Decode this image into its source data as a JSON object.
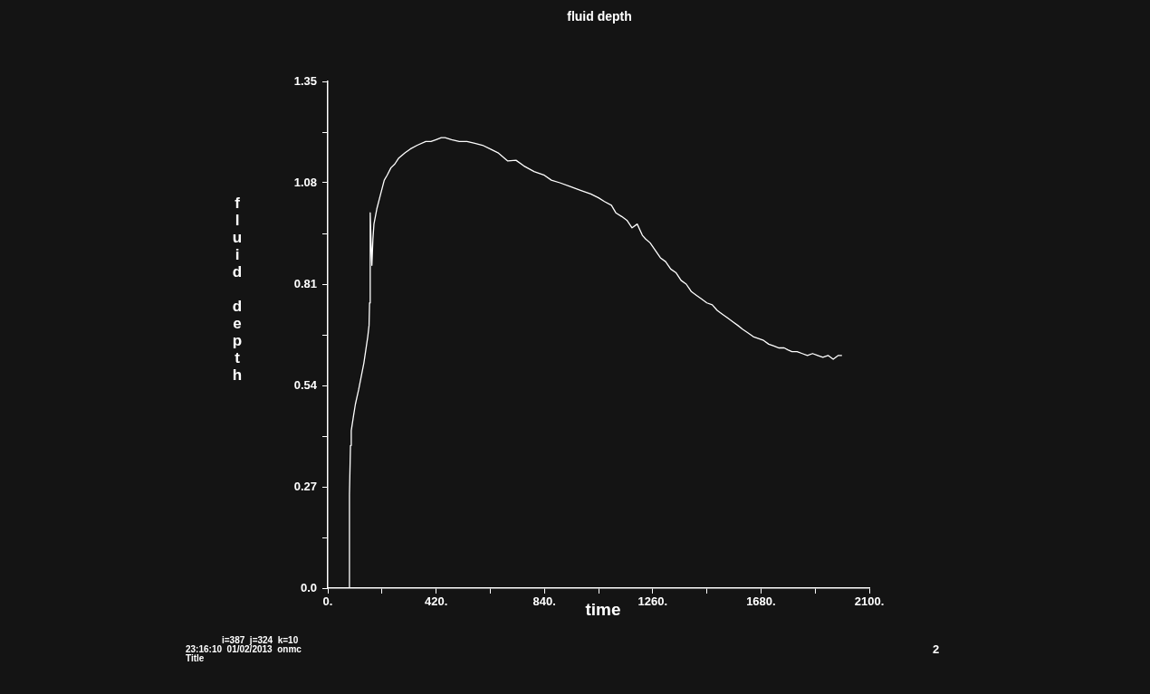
{
  "chart_data": {
    "type": "line",
    "title": "fluid depth",
    "xlabel": "time",
    "ylabel": "fluid depth",
    "x": [
      81,
      84,
      88,
      91,
      100,
      107,
      120,
      140,
      155,
      160,
      162,
      164,
      165,
      168,
      171,
      175,
      179,
      190,
      205,
      219,
      230,
      245,
      260,
      274,
      300,
      320,
      347,
      380,
      400,
      420,
      440,
      455,
      480,
      510,
      540,
      570,
      600,
      630,
      660,
      698,
      730,
      760,
      800,
      840,
      867,
      900,
      940,
      980,
      1020,
      1050,
      1073,
      1100,
      1117,
      1140,
      1160,
      1180,
      1200,
      1220,
      1233,
      1250,
      1270,
      1290,
      1310,
      1330,
      1351,
      1370,
      1390,
      1410,
      1430,
      1450,
      1470,
      1491,
      1510,
      1530,
      1550,
      1570,
      1590,
      1608,
      1630,
      1650,
      1670,
      1690,
      1710,
      1730,
      1750,
      1770,
      1784,
      1800,
      1820,
      1840,
      1860,
      1880,
      1900,
      1920,
      1940,
      1960,
      1980,
      1994
    ],
    "series": [
      {
        "color": "#ffffff",
        "values": [
          0.0,
          0.25,
          0.38,
          0.42,
          0.46,
          0.49,
          0.53,
          0.6,
          0.67,
          0.7,
          0.76,
          0.9,
          1.0,
          0.92,
          0.86,
          0.93,
          0.97,
          1.01,
          1.05,
          1.087,
          1.1,
          1.12,
          1.13,
          1.145,
          1.16,
          1.17,
          1.18,
          1.19,
          1.19,
          1.195,
          1.2,
          1.2,
          1.195,
          1.19,
          1.19,
          1.185,
          1.18,
          1.17,
          1.16,
          1.138,
          1.14,
          1.125,
          1.11,
          1.1,
          1.087,
          1.08,
          1.07,
          1.06,
          1.05,
          1.04,
          1.03,
          1.02,
          1.0,
          0.99,
          0.98,
          0.96,
          0.97,
          0.94,
          0.93,
          0.92,
          0.9,
          0.88,
          0.87,
          0.85,
          0.84,
          0.82,
          0.81,
          0.79,
          0.78,
          0.77,
          0.76,
          0.755,
          0.74,
          0.73,
          0.72,
          0.71,
          0.7,
          0.69,
          0.68,
          0.67,
          0.665,
          0.66,
          0.65,
          0.645,
          0.64,
          0.64,
          0.635,
          0.63,
          0.63,
          0.625,
          0.62,
          0.625,
          0.62,
          0.615,
          0.62,
          0.61,
          0.62,
          0.62
        ]
      }
    ],
    "xlim": [
      0,
      2100
    ],
    "xticks": [
      {
        "value": 0,
        "label": "0."
      },
      {
        "value": 210,
        "label": null
      },
      {
        "value": 420,
        "label": "420."
      },
      {
        "value": 630,
        "label": null
      },
      {
        "value": 840,
        "label": "840."
      },
      {
        "value": 1050,
        "label": null
      },
      {
        "value": 1260,
        "label": "1260."
      },
      {
        "value": 1470,
        "label": null
      },
      {
        "value": 1680,
        "label": "1680."
      },
      {
        "value": 1890,
        "label": null
      },
      {
        "value": 2100,
        "label": "2100."
      }
    ],
    "ylim": [
      0,
      1.35
    ],
    "yticks": [
      {
        "value": 0,
        "label": "0.0"
      },
      {
        "value": 0.135,
        "label": null
      },
      {
        "value": 0.27,
        "label": "0.27"
      },
      {
        "value": 0.405,
        "label": null
      },
      {
        "value": 0.54,
        "label": "0.54"
      },
      {
        "value": 0.675,
        "label": null
      },
      {
        "value": 0.81,
        "label": "0.81"
      },
      {
        "value": 0.945,
        "label": null
      },
      {
        "value": 1.08,
        "label": "1.08"
      },
      {
        "value": 1.215,
        "label": null
      },
      {
        "value": 1.35,
        "label": "1.35"
      }
    ],
    "grid": false,
    "legend": false,
    "marker": "none",
    "line_style": "solid",
    "annotations": [
      "i=387  j=324  k=10",
      "23:16:10  01/02/2013  onmc",
      "Title",
      "2"
    ]
  }
}
